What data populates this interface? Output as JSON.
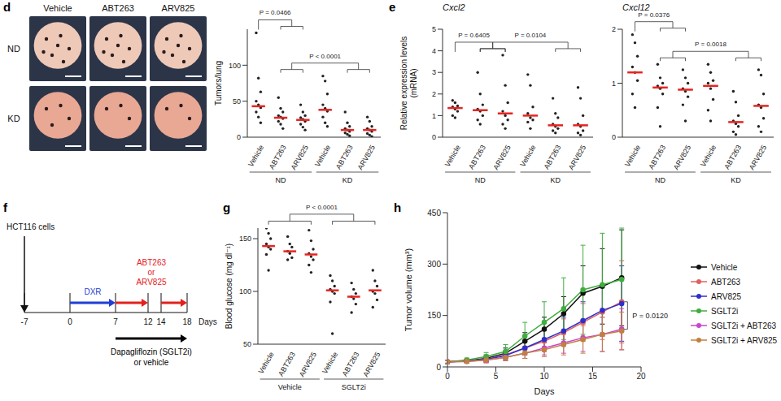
{
  "photos": {
    "columns": [
      "Vehicle",
      "ABT263",
      "ARV825"
    ],
    "rows": [
      "ND",
      "KD"
    ]
  },
  "chart_data": [
    {
      "panel": "d",
      "type": "strip",
      "y_label": "Tumors/lung",
      "categories": [
        "Vehicle",
        "ABT263",
        "ARV825",
        "Vehicle",
        "ABT263",
        "ARV825"
      ],
      "groups": [
        "ND",
        "ND",
        "ND",
        "KD",
        "KD",
        "KD"
      ],
      "values": [
        [
          145,
          82,
          63,
          50,
          45,
          41,
          35,
          28,
          20
        ],
        [
          55,
          40,
          35,
          30,
          28,
          26,
          22,
          18,
          12
        ],
        [
          45,
          35,
          30,
          27,
          25,
          22,
          18,
          14,
          10
        ],
        [
          85,
          78,
          60,
          45,
          40,
          36,
          28,
          20,
          15
        ],
        [
          35,
          20,
          15,
          12,
          10,
          8,
          6,
          4,
          2
        ],
        [
          28,
          22,
          15,
          12,
          10,
          8,
          5,
          3,
          1
        ]
      ],
      "medians": {
        "values": [
          43,
          27,
          24,
          38,
          10,
          10
        ],
        "color": "#e8241f"
      },
      "color": "#222222",
      "ylim": [
        0,
        150
      ],
      "yticks": [
        0,
        50,
        100
      ],
      "comparisons": [
        {
          "label": "P = 0.0466",
          "from": [
            0
          ],
          "to": [
            1,
            2
          ]
        },
        {
          "label": "P < 0.0001",
          "from": [
            1,
            2
          ],
          "to": [
            4,
            5
          ]
        }
      ]
    },
    {
      "panel": "e",
      "type": "strip",
      "title": "Cxcl2",
      "y_label": "Relative expression levels (mRNA)",
      "categories": [
        "Vehicle",
        "ABT263",
        "ARV825",
        "Vehicle",
        "ABT263",
        "ARV825"
      ],
      "groups": [
        "ND",
        "ND",
        "ND",
        "KD",
        "KD",
        "KD"
      ],
      "values": [
        [
          1.7,
          1.6,
          1.45,
          1.4,
          1.3,
          1.2,
          1.0,
          0.9
        ],
        [
          3.0,
          2.0,
          1.5,
          1.3,
          1.2,
          1.0,
          0.8,
          0.6
        ],
        [
          3.8,
          2.4,
          1.6,
          1.2,
          1.0,
          0.8,
          0.6,
          0.4
        ],
        [
          2.9,
          2.4,
          1.4,
          1.1,
          0.9,
          0.8,
          0.7,
          0.4
        ],
        [
          1.8,
          1.1,
          0.9,
          0.6,
          0.5,
          0.4,
          0.3,
          0.2
        ],
        [
          2.3,
          1.8,
          1.0,
          0.6,
          0.5,
          0.3,
          0.2,
          0.1
        ]
      ],
      "medians": {
        "values": [
          1.35,
          1.25,
          1.1,
          1.0,
          0.55,
          0.55
        ],
        "color": "#e8241f"
      },
      "color": "#222222",
      "ylim": [
        0,
        5
      ],
      "yticks": [
        0,
        1,
        2,
        3,
        4,
        5
      ],
      "comparisons": [
        {
          "label": "P = 0.6405",
          "from": [
            0
          ],
          "to": [
            1,
            2
          ]
        },
        {
          "label": "P = 0.0104",
          "from": [
            1,
            2
          ],
          "to": [
            4,
            5
          ]
        }
      ]
    },
    {
      "type": "strip",
      "title": "Cxcl12",
      "categories": [
        "Vehicle",
        "ABT263",
        "ARV825",
        "Vehicle",
        "ABT263",
        "ARV825"
      ],
      "groups": [
        "ND",
        "ND",
        "ND",
        "KD",
        "KD",
        "KD"
      ],
      "values": [
        [
          1.9,
          1.75,
          1.5,
          1.3,
          1.2,
          1.05,
          0.8,
          0.55
        ],
        [
          1.35,
          1.1,
          1.0,
          0.95,
          0.9,
          0.8,
          0.55,
          0.2
        ],
        [
          1.25,
          1.1,
          1.0,
          0.9,
          0.85,
          0.75,
          0.6,
          0.3
        ],
        [
          1.35,
          1.2,
          1.05,
          1.0,
          0.9,
          0.7,
          0.5,
          0.3
        ],
        [
          0.85,
          0.65,
          0.4,
          0.3,
          0.25,
          0.2,
          0.1,
          0.05
        ],
        [
          1.25,
          1.15,
          0.8,
          0.6,
          0.55,
          0.35,
          0.2,
          0.1
        ]
      ],
      "medians": {
        "values": [
          1.2,
          0.92,
          0.88,
          0.95,
          0.28,
          0.58
        ],
        "color": "#e8241f"
      },
      "color": "#222222",
      "ylim": [
        0,
        2
      ],
      "yticks": [
        0,
        1,
        2
      ],
      "comparisons": [
        {
          "label": "P = 0.0376",
          "from": [
            0
          ],
          "to": [
            1,
            2
          ]
        },
        {
          "label": "P = 0.0018",
          "from": [
            1,
            2
          ],
          "to": [
            4,
            5
          ]
        }
      ]
    },
    {
      "panel": "g",
      "type": "strip",
      "y_label": "Blood glucose (mg dl⁻¹)",
      "categories": [
        "Vehicle",
        "ABT263",
        "ARV825",
        "Vehicle",
        "ABT263",
        "ARV825"
      ],
      "groups": [
        "Vehicle",
        "Vehicle",
        "Vehicle",
        "SGLT2i",
        "SGLT2i",
        "SGLT2i"
      ],
      "values": [
        [
          160,
          155,
          150,
          145,
          142,
          140,
          135,
          120
        ],
        [
          152,
          145,
          142,
          138,
          136,
          132,
          130
        ],
        [
          158,
          148,
          140,
          136,
          133,
          130,
          125,
          118
        ],
        [
          115,
          110,
          105,
          102,
          100,
          98,
          90,
          60
        ],
        [
          108,
          102,
          98,
          95,
          93,
          88,
          80
        ],
        [
          120,
          110,
          105,
          100,
          98,
          92,
          85
        ]
      ],
      "medians": {
        "values": [
          143,
          138,
          135,
          101,
          95,
          101
        ],
        "color": "#e8241f"
      },
      "color": "#222222",
      "ylim": [
        50,
        160
      ],
      "yticks": [
        50,
        100,
        150
      ],
      "comparisons": [
        {
          "label": "P < 0.0001",
          "from": [
            0,
            1,
            2
          ],
          "to": [
            3,
            4,
            5
          ]
        }
      ]
    },
    {
      "panel": "h",
      "type": "line",
      "x_label": "Days",
      "y_label": "Tumor volume (mm³)",
      "x": [
        0,
        2,
        4,
        6,
        8,
        10,
        12,
        14,
        16,
        18
      ],
      "xlim": [
        0,
        20
      ],
      "xticks": [
        0,
        5,
        10,
        15,
        20
      ],
      "ylim": [
        0,
        450
      ],
      "yticks": [
        0,
        150,
        300,
        450
      ],
      "marker": "circle",
      "legend": "right",
      "series": [
        {
          "name": "Vehicle",
          "color": "#111111",
          "values": [
            15,
            18,
            25,
            40,
            75,
            110,
            155,
            215,
            235,
            260
          ],
          "errors": [
            5,
            5,
            10,
            15,
            25,
            35,
            50,
            80,
            110,
            140
          ]
        },
        {
          "name": "ABT263",
          "color": "#e0605f",
          "values": [
            15,
            17,
            22,
            35,
            55,
            75,
            100,
            130,
            160,
            190
          ],
          "errors": [
            5,
            5,
            8,
            12,
            20,
            30,
            40,
            55,
            80,
            120
          ]
        },
        {
          "name": "ARV825",
          "color": "#2f2fcc",
          "values": [
            15,
            17,
            22,
            33,
            55,
            80,
            105,
            135,
            165,
            185
          ],
          "errors": [
            5,
            5,
            8,
            12,
            20,
            30,
            40,
            55,
            75,
            110
          ]
        },
        {
          "name": "SGLT2i",
          "color": "#3fae3f",
          "values": [
            15,
            20,
            30,
            45,
            90,
            130,
            170,
            225,
            240,
            255
          ],
          "errors": [
            5,
            6,
            12,
            20,
            40,
            60,
            90,
            130,
            150,
            150
          ]
        },
        {
          "name": "SGLT2i + ABT263",
          "color": "#cc44cc",
          "values": [
            15,
            16,
            20,
            28,
            40,
            55,
            70,
            85,
            95,
            110
          ],
          "errors": [
            4,
            5,
            8,
            10,
            15,
            20,
            30,
            40,
            50,
            60
          ]
        },
        {
          "name": "SGLT2i + ARV825",
          "color": "#c08040",
          "values": [
            15,
            16,
            20,
            28,
            40,
            50,
            65,
            80,
            95,
            105
          ],
          "errors": [
            4,
            5,
            8,
            10,
            15,
            20,
            30,
            40,
            50,
            55
          ]
        }
      ],
      "annotations": [
        {
          "label": "P = 0.0120",
          "between": [
            "ABT263",
            "SGLT2i + ABT263"
          ]
        }
      ]
    }
  ],
  "timeline": {
    "panel": "f",
    "days": [
      -7,
      0,
      7,
      12,
      14,
      18
    ],
    "axis_label": "Days",
    "cells": {
      "label": "HCT116 cells",
      "day": -7
    },
    "pretreatment": {
      "label": "DXR",
      "from": 0,
      "to": 7,
      "color": "#1f3fd6"
    },
    "treatment": {
      "label": [
        "ABT263",
        "or",
        "ARV825"
      ],
      "periods": [
        [
          7,
          12
        ],
        [
          14,
          18
        ]
      ],
      "color": "#e3211c"
    },
    "cotreatment": {
      "label": [
        "Dapagliflozin (SGLT2i)",
        "or vehicle"
      ],
      "from": 7,
      "to": 18,
      "color": "#000000"
    }
  }
}
